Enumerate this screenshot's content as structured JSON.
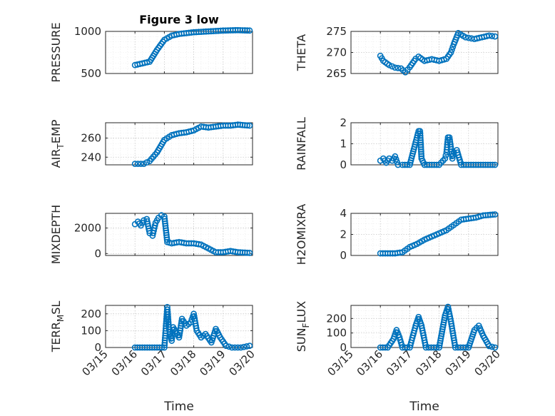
{
  "figure": {
    "title": "Figure 3 low"
  },
  "chart_data": [
    {
      "type": "scatter",
      "id": "pressure",
      "title": "Figure 3 low",
      "ylabel": {
        "main": "PRESSURE",
        "sub": "",
        "tail": ""
      },
      "xlabel": "",
      "xlim": [
        0,
        5
      ],
      "ylim": [
        500,
        1000
      ],
      "yticks": [
        500,
        1000
      ],
      "ytick_labels": [
        "500",
        "1000"
      ],
      "xticks": [
        0,
        1,
        2,
        3,
        4,
        5
      ],
      "xtick_labels": [],
      "grid": true,
      "color": "#0072bd",
      "points": [
        [
          1,
          600
        ],
        [
          1.5,
          640
        ],
        [
          1.75,
          780
        ],
        [
          2,
          900
        ],
        [
          2.25,
          950
        ],
        [
          2.5,
          970
        ],
        [
          3,
          990
        ],
        [
          3.5,
          1000
        ],
        [
          4,
          1010
        ],
        [
          4.5,
          1015
        ],
        [
          4.9,
          1010
        ]
      ]
    },
    {
      "type": "scatter",
      "id": "theta",
      "ylabel": {
        "main": "THETA",
        "sub": "",
        "tail": ""
      },
      "xlabel": "",
      "xlim": [
        0,
        5
      ],
      "ylim": [
        265,
        275
      ],
      "yticks": [
        265,
        270,
        275
      ],
      "ytick_labels": [
        "265",
        "270",
        "275"
      ],
      "xticks": [
        0,
        1,
        2,
        3,
        4,
        5
      ],
      "xtick_labels": [],
      "grid": true,
      "color": "#0072bd",
      "points": [
        [
          1,
          269.2
        ],
        [
          1.1,
          268
        ],
        [
          1.3,
          267
        ],
        [
          1.5,
          266.4
        ],
        [
          1.7,
          266.2
        ],
        [
          1.85,
          265.3
        ],
        [
          2,
          266.5
        ],
        [
          2.2,
          268.5
        ],
        [
          2.3,
          269
        ],
        [
          2.5,
          268
        ],
        [
          2.75,
          268.4
        ],
        [
          3,
          268
        ],
        [
          3.25,
          268.5
        ],
        [
          3.4,
          270
        ],
        [
          3.5,
          272
        ],
        [
          3.65,
          274.6
        ],
        [
          3.9,
          273.6
        ],
        [
          4.2,
          273.2
        ],
        [
          4.45,
          273.6
        ],
        [
          4.7,
          274
        ],
        [
          4.9,
          273.8
        ]
      ]
    },
    {
      "type": "scatter",
      "id": "air-temp",
      "ylabel": {
        "main": "AIR",
        "sub": "T",
        "tail": "EMP"
      },
      "xlabel": "",
      "xlim": [
        0,
        5
      ],
      "ylim": [
        232,
        276
      ],
      "yticks": [
        240,
        260
      ],
      "ytick_labels": [
        "240",
        "260"
      ],
      "xticks": [
        0,
        1,
        2,
        3,
        4,
        5
      ],
      "xtick_labels": [],
      "grid": true,
      "color": "#0072bd",
      "points": [
        [
          1,
          233
        ],
        [
          1.3,
          233
        ],
        [
          1.5,
          236
        ],
        [
          1.75,
          245
        ],
        [
          2,
          258
        ],
        [
          2.25,
          263
        ],
        [
          2.5,
          265
        ],
        [
          2.75,
          266
        ],
        [
          3,
          268
        ],
        [
          3.25,
          272
        ],
        [
          3.5,
          271
        ],
        [
          3.75,
          272
        ],
        [
          4,
          273
        ],
        [
          4.25,
          273
        ],
        [
          4.5,
          274
        ],
        [
          4.9,
          273
        ]
      ]
    },
    {
      "type": "scatter",
      "id": "rainfall",
      "ylabel": {
        "main": "RAINFALL",
        "sub": "",
        "tail": ""
      },
      "xlabel": "",
      "xlim": [
        0,
        5
      ],
      "ylim": [
        0,
        2
      ],
      "yticks": [
        0,
        1,
        2
      ],
      "ytick_labels": [
        "0",
        "1",
        "2"
      ],
      "xticks": [
        0,
        1,
        2,
        3,
        4,
        5
      ],
      "xtick_labels": [],
      "grid": true,
      "color": "#0072bd",
      "points": [
        [
          1,
          0.2
        ],
        [
          1.1,
          0.3
        ],
        [
          1.2,
          0.1
        ],
        [
          1.3,
          0.3
        ],
        [
          1.4,
          0.2
        ],
        [
          1.5,
          0.4
        ],
        [
          1.6,
          0
        ],
        [
          1.75,
          0
        ],
        [
          2,
          0
        ],
        [
          2.3,
          1.6
        ],
        [
          2.35,
          1.6
        ],
        [
          2.4,
          0.3
        ],
        [
          2.5,
          0
        ],
        [
          2.75,
          0
        ],
        [
          3,
          0
        ],
        [
          3.2,
          0.3
        ],
        [
          3.25,
          0.6
        ],
        [
          3.3,
          1.3
        ],
        [
          3.35,
          1.3
        ],
        [
          3.45,
          0.3
        ],
        [
          3.5,
          0.6
        ],
        [
          3.6,
          0.7
        ],
        [
          3.75,
          0
        ],
        [
          4,
          0
        ],
        [
          4.25,
          0
        ],
        [
          4.5,
          0
        ],
        [
          4.9,
          0
        ]
      ]
    },
    {
      "type": "scatter",
      "id": "mixdepth",
      "ylabel": {
        "main": "MIXDEPTH",
        "sub": "",
        "tail": ""
      },
      "xlabel": "",
      "xlim": [
        0,
        5
      ],
      "ylim": [
        -150,
        3150
      ],
      "yticks": [
        0,
        2000
      ],
      "ytick_labels": [
        "0",
        "2000"
      ],
      "xticks": [
        0,
        1,
        2,
        3,
        4,
        5
      ],
      "xtick_labels": [],
      "grid": true,
      "color": "#0072bd",
      "points": [
        [
          1,
          2300
        ],
        [
          1.1,
          2500
        ],
        [
          1.2,
          2200
        ],
        [
          1.3,
          2600
        ],
        [
          1.4,
          2700
        ],
        [
          1.5,
          1600
        ],
        [
          1.6,
          1400
        ],
        [
          1.7,
          2400
        ],
        [
          1.8,
          2800
        ],
        [
          1.9,
          3000
        ],
        [
          2,
          2900
        ],
        [
          2.1,
          900
        ],
        [
          2.25,
          800
        ],
        [
          2.5,
          900
        ],
        [
          2.75,
          800
        ],
        [
          3,
          800
        ],
        [
          3.25,
          700
        ],
        [
          3.5,
          400
        ],
        [
          3.75,
          100
        ],
        [
          4,
          100
        ],
        [
          4.25,
          200
        ],
        [
          4.5,
          100
        ],
        [
          4.9,
          50
        ]
      ]
    },
    {
      "type": "scatter",
      "id": "h2omixra",
      "ylabel": {
        "main": "H2OMIXRA",
        "sub": "",
        "tail": ""
      },
      "xlabel": "",
      "xlim": [
        0,
        5
      ],
      "ylim": [
        0,
        4
      ],
      "yticks": [
        0,
        2,
        4
      ],
      "ytick_labels": [
        "0",
        "2",
        "4"
      ],
      "xticks": [
        0,
        1,
        2,
        3,
        4,
        5
      ],
      "xtick_labels": [],
      "grid": true,
      "color": "#0072bd",
      "points": [
        [
          1,
          0.2
        ],
        [
          1.25,
          0.2
        ],
        [
          1.5,
          0.2
        ],
        [
          1.75,
          0.3
        ],
        [
          2,
          0.8
        ],
        [
          2.25,
          1.1
        ],
        [
          2.5,
          1.5
        ],
        [
          2.75,
          1.8
        ],
        [
          3,
          2.1
        ],
        [
          3.25,
          2.4
        ],
        [
          3.5,
          2.9
        ],
        [
          3.75,
          3.4
        ],
        [
          4,
          3.5
        ],
        [
          4.25,
          3.6
        ],
        [
          4.5,
          3.8
        ],
        [
          4.9,
          3.9
        ]
      ]
    },
    {
      "type": "scatter",
      "id": "terr-msl",
      "ylabel": {
        "main": "TERR",
        "sub": "M",
        "tail": "SL"
      },
      "xlabel": "Time",
      "xlim": [
        0,
        5
      ],
      "ylim": [
        0,
        250
      ],
      "yticks": [
        0,
        100,
        200
      ],
      "ytick_labels": [
        "0",
        "100",
        "200"
      ],
      "xticks": [
        0,
        1,
        2,
        3,
        4,
        5
      ],
      "xtick_labels": [
        "03/15",
        "03/16",
        "03/17",
        "03/18",
        "03/19",
        "03/20"
      ],
      "grid": true,
      "color": "#0072bd",
      "points": [
        [
          1,
          0
        ],
        [
          1.25,
          0
        ],
        [
          1.5,
          0
        ],
        [
          1.75,
          0
        ],
        [
          2.0,
          0
        ],
        [
          2.1,
          240
        ],
        [
          2.15,
          120
        ],
        [
          2.25,
          40
        ],
        [
          2.3,
          120
        ],
        [
          2.5,
          60
        ],
        [
          2.6,
          170
        ],
        [
          2.75,
          130
        ],
        [
          2.9,
          150
        ],
        [
          3.0,
          200
        ],
        [
          3.1,
          100
        ],
        [
          3.25,
          60
        ],
        [
          3.4,
          80
        ],
        [
          3.6,
          30
        ],
        [
          3.75,
          110
        ],
        [
          3.9,
          60
        ],
        [
          4.1,
          10
        ],
        [
          4.3,
          0
        ],
        [
          4.6,
          0
        ],
        [
          4.9,
          10
        ]
      ]
    },
    {
      "type": "scatter",
      "id": "sun-flux",
      "ylabel": {
        "main": "SUN",
        "sub": "F",
        "tail": "LUX"
      },
      "xlabel": "Time",
      "xlim": [
        0,
        5
      ],
      "ylim": [
        0,
        290
      ],
      "yticks": [
        0,
        100,
        200
      ],
      "ytick_labels": [
        "0",
        "100",
        "200"
      ],
      "xticks": [
        0,
        1,
        2,
        3,
        4,
        5
      ],
      "xtick_labels": [
        "03/15",
        "03/16",
        "03/17",
        "03/18",
        "03/19",
        "03/20"
      ],
      "grid": true,
      "color": "#0072bd",
      "points": [
        [
          1,
          0
        ],
        [
          1.25,
          0
        ],
        [
          1.45,
          60
        ],
        [
          1.55,
          120
        ],
        [
          1.65,
          70
        ],
        [
          1.75,
          0
        ],
        [
          2,
          0
        ],
        [
          2.2,
          150
        ],
        [
          2.3,
          210
        ],
        [
          2.4,
          150
        ],
        [
          2.55,
          0
        ],
        [
          3,
          0
        ],
        [
          3.2,
          220
        ],
        [
          3.3,
          280
        ],
        [
          3.4,
          180
        ],
        [
          3.55,
          0
        ],
        [
          4,
          0
        ],
        [
          4.2,
          120
        ],
        [
          4.35,
          150
        ],
        [
          4.5,
          80
        ],
        [
          4.7,
          10
        ],
        [
          4.9,
          0
        ]
      ]
    }
  ]
}
